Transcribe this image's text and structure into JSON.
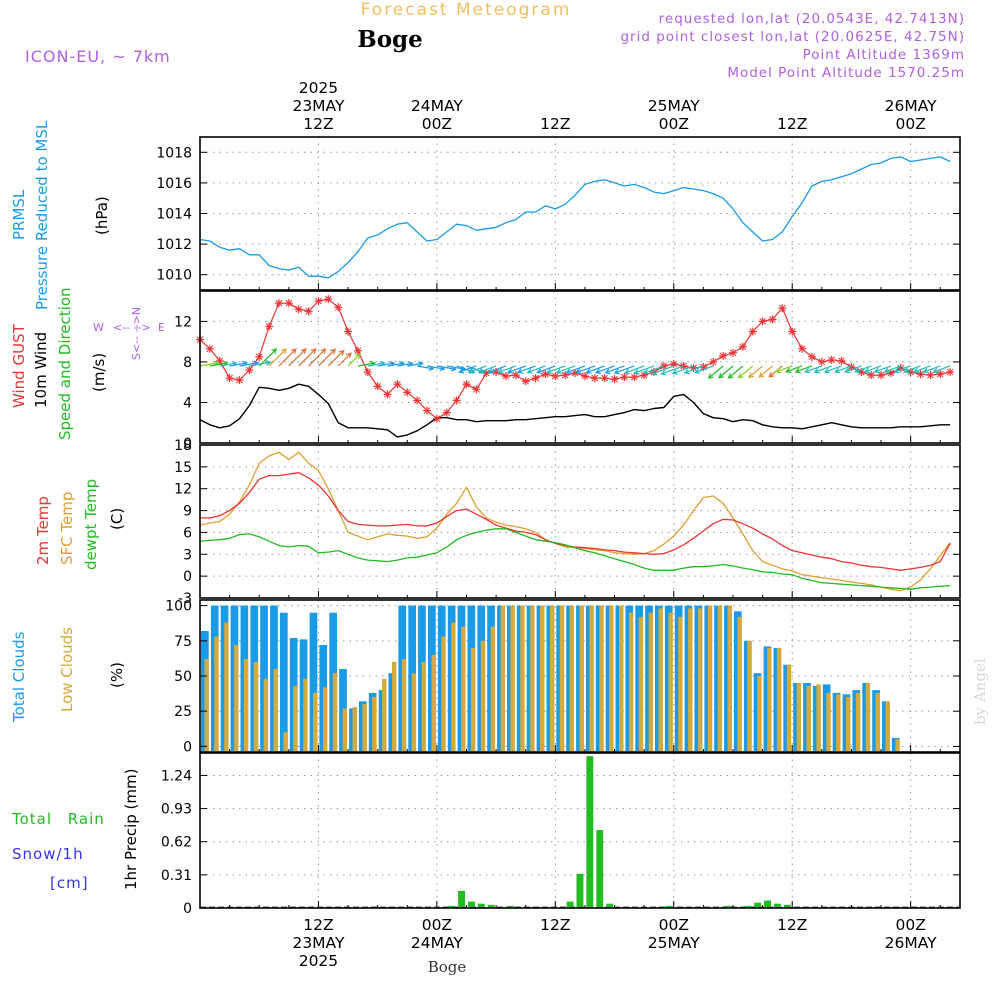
{
  "header": {
    "title": "Forecast Meteogram",
    "place": "Boge",
    "model": "ICON-EU, ~ 7km",
    "requested": "requested lon,lat (20.0543E, 42.7413N)",
    "gridpoint": "grid point closest lon,lat (20.0625E, 42.75N)",
    "altitude": "Point Altitude 1369m",
    "model_altitude": "Model Point Altitude 1570.25m",
    "credit": "by Angel",
    "footer_place": "Boge"
  },
  "colors": {
    "pressure": "#1a9be8",
    "gust": "#ee3333",
    "wind": "#000000",
    "temp2m": "#ee3333",
    "sfc": "#e0a030",
    "dewpt": "#22bb22",
    "total_clouds": "#1a9be8",
    "low_clouds": "#d4aa3c",
    "rain": "#22bb22",
    "snow": "#3333ee",
    "label_purple": "#b060e0",
    "title_orange": "#f0c060"
  },
  "time_axis": {
    "top_labels": [
      {
        "t": 12,
        "lines": [
          "2025",
          "23MAY",
          "12Z"
        ]
      },
      {
        "t": 24,
        "lines": [
          "24MAY",
          "00Z"
        ]
      },
      {
        "t": 36,
        "lines": [
          "12Z"
        ]
      },
      {
        "t": 48,
        "lines": [
          "25MAY",
          "00Z"
        ]
      },
      {
        "t": 60,
        "lines": [
          "12Z"
        ]
      },
      {
        "t": 72,
        "lines": [
          "26MAY",
          "00Z"
        ]
      }
    ],
    "bottom_labels": [
      {
        "t": 12,
        "lines": [
          "12Z",
          "23MAY",
          "2025"
        ]
      },
      {
        "t": 24,
        "lines": [
          "00Z",
          "24MAY"
        ]
      },
      {
        "t": 36,
        "lines": [
          "12Z"
        ]
      },
      {
        "t": 48,
        "lines": [
          "00Z",
          "25MAY"
        ]
      },
      {
        "t": 60,
        "lines": [
          "12Z"
        ]
      },
      {
        "t": 72,
        "lines": [
          "00Z",
          "26MAY"
        ]
      }
    ]
  },
  "chart_data": [
    {
      "type": "line",
      "name": "pressure",
      "labels": [
        "PRMSL",
        "Pressure Reduced to MSL",
        "(hPa)"
      ],
      "ylim": [
        1009,
        1019
      ],
      "yticks": [
        1010,
        1012,
        1014,
        1016,
        1018
      ],
      "x": [
        0,
        1,
        2,
        3,
        4,
        5,
        6,
        7,
        8,
        9,
        10,
        11,
        12,
        13,
        14,
        15,
        16,
        17,
        18,
        19,
        20,
        21,
        22,
        23,
        24,
        25,
        26,
        27,
        28,
        29,
        30,
        31,
        32,
        33,
        34,
        35,
        36,
        37,
        38,
        39,
        40,
        41,
        42,
        43,
        44,
        45,
        46,
        47,
        48,
        49,
        50,
        51,
        52,
        53,
        54,
        55,
        56,
        57,
        58,
        59,
        60,
        61,
        62,
        63,
        64,
        65,
        66,
        67,
        68,
        69,
        70,
        71,
        72,
        73,
        74,
        75,
        76
      ],
      "values": [
        1012.3,
        1012.2,
        1011.8,
        1011.6,
        1011.7,
        1011.3,
        1011.3,
        1010.6,
        1010.4,
        1010.3,
        1010.5,
        1009.9,
        1009.9,
        1009.8,
        1010.2,
        1010.8,
        1011.5,
        1012.4,
        1012.6,
        1013.0,
        1013.3,
        1013.4,
        1012.8,
        1012.2,
        1012.3,
        1012.8,
        1013.3,
        1013.2,
        1012.9,
        1013.0,
        1013.1,
        1013.4,
        1013.6,
        1014.1,
        1014.1,
        1014.5,
        1014.3,
        1014.6,
        1015.2,
        1015.9,
        1016.1,
        1016.2,
        1016.0,
        1015.8,
        1015.9,
        1015.7,
        1015.4,
        1015.3,
        1015.5,
        1015.7,
        1015.6,
        1015.5,
        1015.3,
        1015.0,
        1014.3,
        1013.4,
        1012.8,
        1012.2,
        1012.3,
        1012.8,
        1013.8,
        1014.7,
        1015.8,
        1016.1,
        1016.2,
        1016.4,
        1016.6,
        1016.9,
        1017.2,
        1017.3,
        1017.6,
        1017.7,
        1017.4,
        1017.5,
        1017.6,
        1017.7,
        1017.4
      ]
    },
    {
      "type": "line",
      "name": "wind",
      "labels": [
        "Wind GUST",
        "10m Wind",
        "Speed and Direction",
        "(m/s)"
      ],
      "compass": [
        "N",
        "<--",
        "-->",
        "S",
        "W",
        "E"
      ],
      "ylim": [
        0,
        15
      ],
      "yticks": [
        0,
        4,
        8,
        12
      ],
      "x": [
        0,
        1,
        2,
        3,
        4,
        5,
        6,
        7,
        8,
        9,
        10,
        11,
        12,
        13,
        14,
        15,
        16,
        17,
        18,
        19,
        20,
        21,
        22,
        23,
        24,
        25,
        26,
        27,
        28,
        29,
        30,
        31,
        32,
        33,
        34,
        35,
        36,
        37,
        38,
        39,
        40,
        41,
        42,
        43,
        44,
        45,
        46,
        47,
        48,
        49,
        50,
        51,
        52,
        53,
        54,
        55,
        56,
        57,
        58,
        59,
        60,
        61,
        62,
        63,
        64,
        65,
        66,
        67,
        68,
        69,
        70,
        71,
        72,
        73,
        74,
        75,
        76
      ],
      "gust": [
        10.2,
        9.3,
        8.1,
        6.4,
        6.2,
        7.2,
        8.5,
        11.5,
        13.8,
        13.8,
        13.2,
        13.0,
        14.0,
        14.2,
        13.4,
        11.0,
        9.1,
        7.0,
        5.6,
        4.8,
        5.8,
        5.0,
        4.2,
        3.2,
        2.4,
        3.0,
        4.2,
        5.8,
        5.3,
        6.9,
        7.0,
        6.6,
        6.7,
        6.1,
        6.4,
        6.8,
        6.6,
        6.7,
        6.9,
        6.6,
        6.4,
        6.4,
        6.3,
        6.5,
        6.5,
        6.7,
        7.0,
        7.6,
        7.8,
        7.6,
        7.4,
        7.5,
        8.0,
        8.6,
        8.9,
        9.5,
        11.0,
        12.0,
        12.2,
        13.3,
        11.0,
        9.3,
        8.5,
        8.0,
        8.2,
        8.1,
        7.5,
        7.0,
        6.7,
        6.7,
        6.9,
        7.4,
        7.0,
        6.8,
        6.7,
        6.8,
        7.0
      ],
      "speed": [
        2.3,
        1.8,
        1.5,
        1.7,
        2.4,
        3.7,
        5.5,
        5.4,
        5.2,
        5.4,
        5.8,
        5.6,
        4.8,
        3.9,
        2.0,
        1.5,
        1.5,
        1.5,
        1.4,
        1.3,
        0.6,
        0.8,
        1.2,
        1.8,
        2.5,
        2.5,
        2.3,
        2.3,
        2.1,
        2.2,
        2.2,
        2.2,
        2.3,
        2.3,
        2.4,
        2.5,
        2.6,
        2.6,
        2.7,
        2.8,
        2.6,
        2.6,
        2.8,
        3.0,
        3.3,
        3.2,
        3.4,
        3.5,
        4.6,
        4.8,
        4.0,
        2.9,
        2.5,
        2.4,
        2.1,
        2.3,
        2.2,
        1.8,
        1.6,
        1.5,
        1.5,
        1.4,
        1.6,
        1.8,
        2.0,
        1.8,
        1.6,
        1.5,
        1.5,
        1.5,
        1.5,
        1.6,
        1.6,
        1.6,
        1.7,
        1.8,
        1.8
      ],
      "arrow_dir_deg": [
        80,
        80,
        80,
        80,
        80,
        80,
        45,
        45,
        45,
        45,
        45,
        45,
        45,
        45,
        45,
        45,
        80,
        80,
        80,
        80,
        80,
        80,
        100,
        100,
        100,
        100,
        110,
        110,
        250,
        250,
        250,
        250,
        250,
        250,
        250,
        250,
        250,
        250,
        250,
        250,
        250,
        250,
        250,
        250,
        250,
        250,
        250,
        250,
        250,
        250,
        250,
        250,
        250,
        230,
        230,
        230,
        230,
        230,
        230,
        230,
        250,
        250,
        250,
        250,
        250,
        250,
        250,
        250,
        250,
        250,
        250,
        250,
        250,
        250,
        250,
        250,
        250
      ]
    },
    {
      "type": "line",
      "name": "temperature",
      "labels": [
        "2m Temp",
        "SFC Temp",
        "dewpt Temp",
        "(C)"
      ],
      "ylim": [
        -3,
        18
      ],
      "yticks": [
        -3,
        0,
        3,
        6,
        9,
        12,
        15,
        18
      ],
      "x": [
        0,
        1,
        2,
        3,
        4,
        5,
        6,
        7,
        8,
        9,
        10,
        11,
        12,
        13,
        14,
        15,
        16,
        17,
        18,
        19,
        20,
        21,
        22,
        23,
        24,
        25,
        26,
        27,
        28,
        29,
        30,
        31,
        32,
        33,
        34,
        35,
        36,
        37,
        38,
        39,
        40,
        41,
        42,
        43,
        44,
        45,
        46,
        47,
        48,
        49,
        50,
        51,
        52,
        53,
        54,
        55,
        56,
        57,
        58,
        59,
        60,
        61,
        62,
        63,
        64,
        65,
        66,
        67,
        68,
        69,
        70,
        71,
        72,
        73,
        74,
        75,
        76
      ],
      "temp2m": [
        8.0,
        8.0,
        8.3,
        9.0,
        10.0,
        11.5,
        13.3,
        13.8,
        13.8,
        14.0,
        14.2,
        13.5,
        12.5,
        11.0,
        9.0,
        7.5,
        7.1,
        7.0,
        6.9,
        6.9,
        7.0,
        7.1,
        6.9,
        6.9,
        7.3,
        8.2,
        9.0,
        9.2,
        8.5,
        7.8,
        7.0,
        6.6,
        6.2,
        6.0,
        5.7,
        5.0,
        4.5,
        4.2,
        4.0,
        3.9,
        3.8,
        3.6,
        3.5,
        3.3,
        3.2,
        3.1,
        3.0,
        3.1,
        3.6,
        4.3,
        5.2,
        6.2,
        7.2,
        7.8,
        7.7,
        7.2,
        6.6,
        5.8,
        5.1,
        4.2,
        3.5,
        3.2,
        2.9,
        2.6,
        2.4,
        2.0,
        1.8,
        1.5,
        1.3,
        1.2,
        1.0,
        0.8,
        1.0,
        1.2,
        1.5,
        2.0,
        4.5
      ],
      "sfc": [
        7.0,
        7.3,
        7.5,
        8.5,
        10.2,
        12.5,
        15.5,
        16.5,
        17.0,
        16.0,
        17.0,
        15.5,
        14.5,
        12.0,
        9.0,
        6.0,
        5.5,
        5.0,
        5.4,
        5.8,
        5.6,
        5.5,
        5.2,
        5.4,
        6.6,
        8.5,
        10.0,
        12.2,
        9.5,
        8.0,
        7.4,
        7.0,
        6.8,
        6.5,
        6.0,
        5.0,
        4.5,
        4.0,
        3.9,
        3.8,
        3.6,
        3.5,
        3.2,
        3.1,
        3.0,
        3.1,
        3.5,
        4.4,
        5.5,
        7.0,
        9.0,
        10.8,
        11.0,
        10.0,
        8.0,
        5.8,
        3.5,
        2.0,
        1.5,
        1.0,
        0.7,
        0.2,
        0.0,
        -0.2,
        -0.4,
        -0.6,
        -0.8,
        -1.0,
        -1.2,
        -1.5,
        -1.8,
        -2.0,
        -1.5,
        -0.5,
        1.0,
        2.8,
        4.6
      ],
      "dewpt": [
        4.8,
        4.9,
        5.0,
        5.2,
        5.7,
        5.8,
        5.4,
        4.8,
        4.2,
        4.0,
        4.2,
        4.1,
        3.2,
        3.3,
        3.5,
        3.0,
        2.5,
        2.2,
        2.1,
        2.0,
        2.2,
        2.5,
        2.6,
        2.9,
        3.2,
        4.0,
        5.0,
        5.6,
        6.0,
        6.3,
        6.5,
        6.5,
        6.0,
        5.5,
        5.0,
        4.8,
        4.6,
        4.3,
        3.9,
        3.5,
        3.2,
        2.8,
        2.4,
        2.0,
        1.6,
        1.1,
        0.8,
        0.8,
        0.8,
        1.1,
        1.3,
        1.3,
        1.4,
        1.6,
        1.4,
        1.1,
        0.9,
        0.6,
        0.5,
        0.3,
        0.2,
        -0.3,
        -0.6,
        -0.9,
        -1.0,
        -1.1,
        -1.2,
        -1.3,
        -1.4,
        -1.5,
        -1.6,
        -1.7,
        -1.8,
        -1.6,
        -1.5,
        -1.4,
        -1.3
      ]
    },
    {
      "type": "bar",
      "name": "clouds",
      "labels": [
        "Total Clouds",
        "Low Clouds",
        "(%)"
      ],
      "ylim": [
        -4,
        104
      ],
      "yticks": [
        0,
        25,
        50,
        75,
        100
      ],
      "x": [
        0,
        1,
        2,
        3,
        4,
        5,
        6,
        7,
        8,
        9,
        10,
        11,
        12,
        13,
        14,
        15,
        16,
        17,
        18,
        19,
        20,
        21,
        22,
        23,
        24,
        25,
        26,
        27,
        28,
        29,
        30,
        31,
        32,
        33,
        34,
        35,
        36,
        37,
        38,
        39,
        40,
        41,
        42,
        43,
        44,
        45,
        46,
        47,
        48,
        49,
        50,
        51,
        52,
        53,
        54,
        55,
        56,
        57,
        58,
        59,
        60,
        61,
        62,
        63,
        64,
        65,
        66,
        67,
        68,
        69,
        70,
        71,
        72,
        73,
        74,
        75,
        76
      ],
      "total": [
        82,
        100,
        100,
        100,
        100,
        100,
        100,
        100,
        95,
        77,
        76,
        95,
        72,
        95,
        55,
        27,
        32,
        38,
        40,
        52,
        100,
        100,
        100,
        100,
        100,
        100,
        100,
        100,
        100,
        100,
        100,
        100,
        100,
        100,
        100,
        100,
        100,
        100,
        100,
        100,
        100,
        100,
        100,
        100,
        100,
        100,
        100,
        100,
        100,
        100,
        100,
        100,
        100,
        100,
        96,
        75,
        52,
        71,
        70,
        58,
        45,
        45,
        43,
        44,
        38,
        37,
        40,
        45,
        40,
        32,
        6,
        0,
        0,
        0,
        0,
        0,
        0
      ],
      "low": [
        62,
        78,
        88,
        72,
        62,
        60,
        48,
        55,
        10,
        43,
        48,
        38,
        42,
        52,
        27,
        28,
        30,
        35,
        48,
        60,
        62,
        52,
        60,
        65,
        78,
        88,
        85,
        70,
        75,
        85,
        100,
        100,
        100,
        100,
        100,
        100,
        100,
        100,
        100,
        100,
        100,
        100,
        100,
        95,
        92,
        95,
        98,
        95,
        92,
        98,
        98,
        100,
        100,
        100,
        92,
        75,
        50,
        70,
        70,
        58,
        45,
        43,
        44,
        38,
        37,
        35,
        38,
        45,
        38,
        32,
        5,
        0,
        0,
        0,
        0,
        0,
        0
      ]
    },
    {
      "type": "bar",
      "name": "precip",
      "labels": [
        "Total Rain",
        "Snow/1h",
        "[cm]",
        "1hr Precip (mm)"
      ],
      "ylim": [
        0,
        1.45
      ],
      "yticks": [
        0,
        0.31,
        0.62,
        0.93,
        1.24
      ],
      "x": [
        0,
        1,
        2,
        3,
        4,
        5,
        6,
        7,
        8,
        9,
        10,
        11,
        12,
        13,
        14,
        15,
        16,
        17,
        18,
        19,
        20,
        21,
        22,
        23,
        24,
        25,
        26,
        27,
        28,
        29,
        30,
        31,
        32,
        33,
        34,
        35,
        36,
        37,
        38,
        39,
        40,
        41,
        42,
        43,
        44,
        45,
        46,
        47,
        48,
        49,
        50,
        51,
        52,
        53,
        54,
        55,
        56,
        57,
        58,
        59,
        60,
        61,
        62,
        63,
        64,
        65,
        66,
        67,
        68,
        69,
        70,
        71,
        72,
        73,
        74,
        75,
        76
      ],
      "rain": [
        0,
        0,
        0,
        0,
        0,
        0,
        0,
        0,
        0,
        0,
        0,
        0,
        0,
        0,
        0,
        0,
        0,
        0,
        0,
        0,
        0,
        0,
        0,
        0,
        0,
        0.02,
        0.16,
        0.06,
        0.04,
        0.03,
        0,
        0.02,
        0,
        0.01,
        0,
        0,
        0,
        0.06,
        0.32,
        1.42,
        0.73,
        0.04,
        0,
        0,
        0,
        0,
        0,
        0.02,
        0,
        0,
        0,
        0,
        0,
        0.02,
        0,
        0.02,
        0.05,
        0.07,
        0.04,
        0.03,
        0,
        0,
        0,
        0,
        0,
        0,
        0,
        0,
        0,
        0,
        0,
        0,
        0,
        0,
        0,
        0,
        0
      ]
    }
  ]
}
